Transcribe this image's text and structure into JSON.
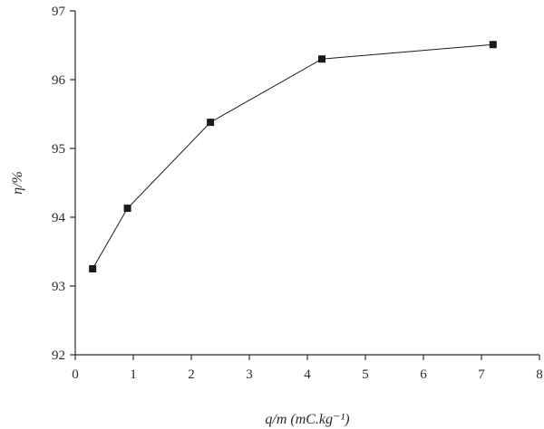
{
  "chart_data": {
    "type": "line",
    "title": "",
    "xlabel": "q/m (mC.kg⁻¹)",
    "ylabel": "η/%",
    "xlim": [
      0,
      8
    ],
    "ylim": [
      92,
      97
    ],
    "x_ticks": [
      0,
      1,
      2,
      3,
      4,
      5,
      6,
      7,
      8
    ],
    "y_ticks": [
      92,
      93,
      94,
      95,
      96,
      97
    ],
    "grid": false,
    "series": [
      {
        "x": [
          0.3,
          0.9,
          2.33,
          4.25,
          7.2
        ],
        "y": [
          93.25,
          94.13,
          95.38,
          96.3,
          96.51
        ],
        "marker": "square",
        "color": "#1a1a1a"
      }
    ]
  }
}
